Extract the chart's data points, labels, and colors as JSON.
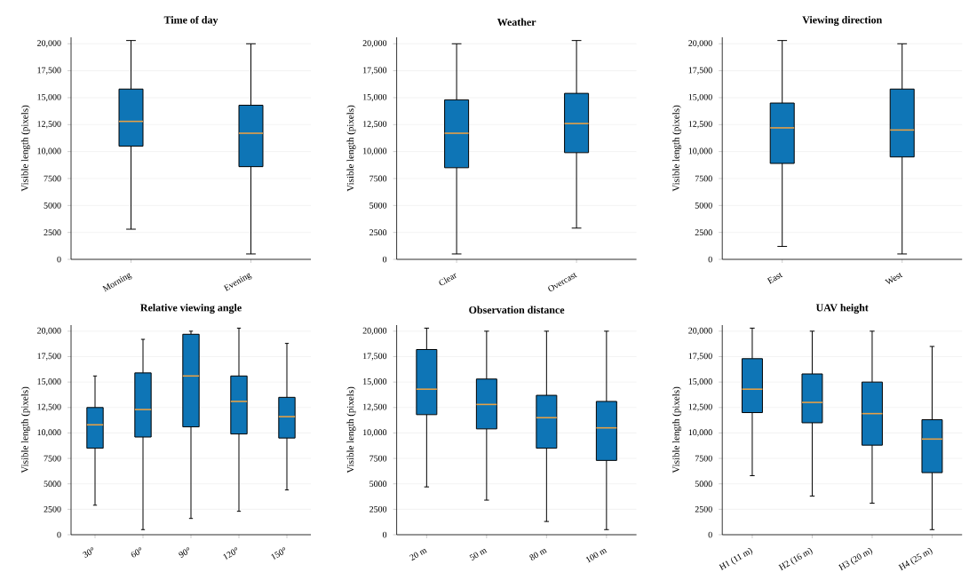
{
  "chart_data": [
    {
      "type": "box",
      "title": "Time of day",
      "ylabel": "Visible length (pixels)",
      "categories": [
        "Morning",
        "Evening"
      ],
      "color": "#0e75b6",
      "grid": "y",
      "ylim": [
        0,
        20600
      ],
      "yticks": [
        0,
        2500,
        5000,
        7500,
        {
          "value": 10000,
          "label": "10,000"
        },
        {
          "value": 12500,
          "label": "12,500"
        },
        {
          "value": 15000,
          "label": "15,000"
        },
        {
          "value": 17500,
          "label": "17,500"
        },
        {
          "value": 20000,
          "label": "20,000"
        }
      ],
      "boxes": [
        {
          "low": 2800,
          "q1": 10500,
          "median": 12800,
          "q3": 15800,
          "high": 20300
        },
        {
          "low": 500,
          "q1": 8600,
          "median": 11700,
          "q3": 14300,
          "high": 20000
        }
      ]
    },
    {
      "type": "box",
      "title": "Weather",
      "ylabel": "Visible length (pixels)",
      "categories": [
        "Clear",
        "Overcast"
      ],
      "color": "#0e75b6",
      "grid": "y",
      "ylim": [
        0,
        20600
      ],
      "yticks": [
        0,
        2500,
        5000,
        7500,
        {
          "value": 10000,
          "label": "10,000"
        },
        {
          "value": 12500,
          "label": "12,500"
        },
        {
          "value": 15000,
          "label": "15,000"
        },
        {
          "value": 17500,
          "label": "17,500"
        },
        {
          "value": 20000,
          "label": "20,000"
        }
      ],
      "boxes": [
        {
          "low": 500,
          "q1": 8500,
          "median": 11700,
          "q3": 14800,
          "high": 20000
        },
        {
          "low": 2900,
          "q1": 9900,
          "median": 12600,
          "q3": 15400,
          "high": 20300
        }
      ]
    },
    {
      "type": "box",
      "title": "Viewing direction",
      "ylabel": "Visible length (pixels)",
      "categories": [
        "East",
        "West"
      ],
      "color": "#0e75b6",
      "grid": "y",
      "ylim": [
        0,
        20600
      ],
      "yticks": [
        0,
        2500,
        5000,
        7500,
        {
          "value": 10000,
          "label": "10,000"
        },
        {
          "value": 12500,
          "label": "12,500"
        },
        {
          "value": 15000,
          "label": "15,000"
        },
        {
          "value": 17500,
          "label": "17,500"
        },
        {
          "value": 20000,
          "label": "20,000"
        }
      ],
      "boxes": [
        {
          "low": 1200,
          "q1": 8900,
          "median": 12200,
          "q3": 14500,
          "high": 20300
        },
        {
          "low": 500,
          "q1": 9500,
          "median": 12000,
          "q3": 15800,
          "high": 20000
        }
      ]
    },
    {
      "type": "box",
      "title": "Relative viewing angle",
      "ylabel": "Visible length (pixels)",
      "categories": [
        "30°",
        "60°",
        "90°",
        "120°",
        "150°"
      ],
      "color": "#0e75b6",
      "grid": "y",
      "ylim": [
        0,
        20600
      ],
      "yticks": [
        0,
        2500,
        5000,
        7500,
        {
          "value": 10000,
          "label": "10,000"
        },
        {
          "value": 12500,
          "label": "12,500"
        },
        {
          "value": 15000,
          "label": "15,000"
        },
        {
          "value": 17500,
          "label": "17,500"
        },
        {
          "value": 20000,
          "label": "20,000"
        }
      ],
      "boxes": [
        {
          "low": 2900,
          "q1": 8500,
          "median": 10800,
          "q3": 12500,
          "high": 15600
        },
        {
          "low": 500,
          "q1": 9600,
          "median": 12300,
          "q3": 15900,
          "high": 19200
        },
        {
          "low": 1600,
          "q1": 10600,
          "median": 15600,
          "q3": 19700,
          "high": 20000
        },
        {
          "low": 2300,
          "q1": 9900,
          "median": 13100,
          "q3": 15600,
          "high": 20300
        },
        {
          "low": 4400,
          "q1": 9500,
          "median": 11600,
          "q3": 13500,
          "high": 18800
        }
      ]
    },
    {
      "type": "box",
      "title": "Observation distance",
      "ylabel": "Visible length (pixels)",
      "categories": [
        "20 m",
        "50 m",
        "80 m",
        "100 m"
      ],
      "color": "#0e75b6",
      "grid": "y",
      "ylim": [
        0,
        20600
      ],
      "yticks": [
        0,
        2500,
        5000,
        7500,
        {
          "value": 10000,
          "label": "10,000"
        },
        {
          "value": 12500,
          "label": "12,500"
        },
        {
          "value": 15000,
          "label": "15,000"
        },
        {
          "value": 17500,
          "label": "17,500"
        },
        {
          "value": 20000,
          "label": "20,000"
        }
      ],
      "boxes": [
        {
          "low": 4700,
          "q1": 11800,
          "median": 14300,
          "q3": 18200,
          "high": 20300
        },
        {
          "low": 3400,
          "q1": 10400,
          "median": 12800,
          "q3": 15300,
          "high": 20000
        },
        {
          "low": 1300,
          "q1": 8500,
          "median": 11500,
          "q3": 13700,
          "high": 20000
        },
        {
          "low": 500,
          "q1": 7300,
          "median": 10500,
          "q3": 13100,
          "high": 20000
        }
      ]
    },
    {
      "type": "box",
      "title": "UAV height",
      "ylabel": "Visible length (pixels)",
      "categories": [
        "H1 (11 m)",
        "H2 (16 m)",
        "H3 (20 m)",
        "H4 (25 m)"
      ],
      "color": "#0e75b6",
      "grid": "y",
      "ylim": [
        0,
        20600
      ],
      "yticks": [
        0,
        2500,
        5000,
        7500,
        {
          "value": 10000,
          "label": "10,000"
        },
        {
          "value": 12500,
          "label": "12,500"
        },
        {
          "value": 15000,
          "label": "15,000"
        },
        {
          "value": 17500,
          "label": "17,500"
        },
        {
          "value": 20000,
          "label": "20,000"
        }
      ],
      "boxes": [
        {
          "low": 5800,
          "q1": 12000,
          "median": 14300,
          "q3": 17300,
          "high": 20300
        },
        {
          "low": 3800,
          "q1": 11000,
          "median": 13000,
          "q3": 15800,
          "high": 20000
        },
        {
          "low": 3100,
          "q1": 8800,
          "median": 11900,
          "q3": 15000,
          "high": 20000
        },
        {
          "low": 500,
          "q1": 6100,
          "median": 9400,
          "q3": 11300,
          "high": 18500
        }
      ]
    }
  ]
}
